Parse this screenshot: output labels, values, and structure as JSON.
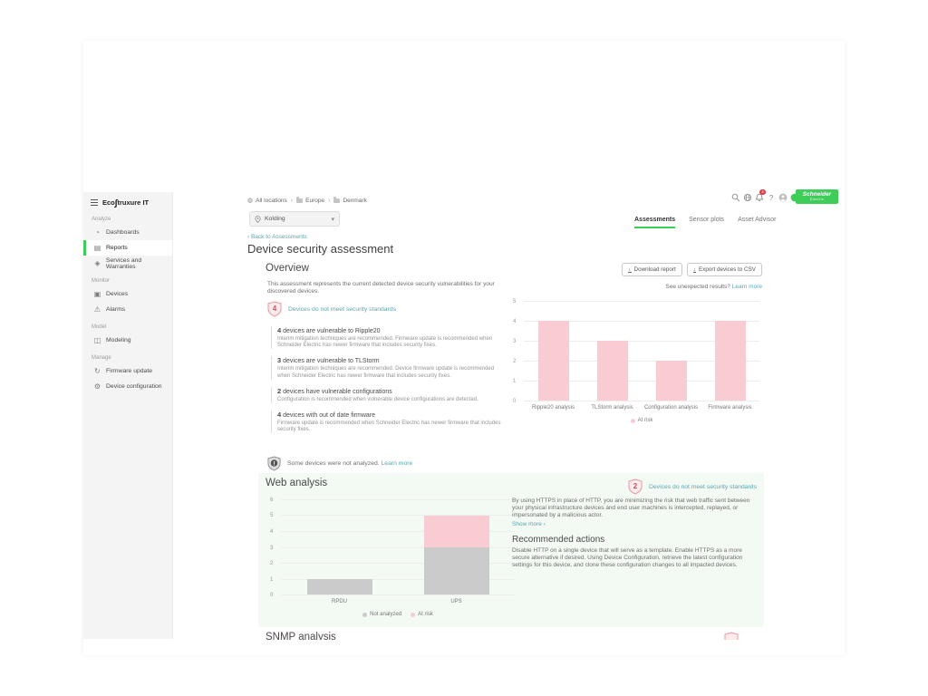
{
  "brand": {
    "logo_eco": "Eco",
    "logo_swirl": "∫",
    "logo_rest": "truxure IT",
    "schneider_line1": "Schneider",
    "schneider_line2": "Electric",
    "accent_green": "#3dcd58",
    "teal_link": "#5aa6b0",
    "risk_pink": "#f8ccd2",
    "neutral_gray": "#cbcbcb"
  },
  "sidebar": {
    "sections": [
      {
        "label": "Analyze",
        "items": [
          {
            "label": "Dashboards",
            "icon": "dashboards-icon",
            "glyph": "◔",
            "active": false
          },
          {
            "label": "Reports",
            "icon": "reports-icon",
            "glyph": "▤",
            "active": true
          },
          {
            "label": "Services and Warranties",
            "icon": "services-warranties-icon",
            "glyph": "◈",
            "active": false
          }
        ]
      },
      {
        "label": "Monitor",
        "items": [
          {
            "label": "Devices",
            "icon": "devices-icon",
            "glyph": "▣",
            "active": false
          },
          {
            "label": "Alarms",
            "icon": "alarms-icon",
            "glyph": "⚠",
            "active": false
          }
        ]
      },
      {
        "label": "Model",
        "items": [
          {
            "label": "Modeling",
            "icon": "modeling-icon",
            "glyph": "◫",
            "active": false
          }
        ]
      },
      {
        "label": "Manage",
        "items": [
          {
            "label": "Firmware update",
            "icon": "firmware-update-icon",
            "glyph": "↻",
            "active": false
          },
          {
            "label": "Device configuration",
            "icon": "device-configuration-icon",
            "glyph": "⚙",
            "active": false
          }
        ]
      }
    ]
  },
  "topbar": {
    "breadcrumb": [
      {
        "label": "All locations"
      },
      {
        "label": "Europe"
      },
      {
        "label": "Denmark"
      }
    ],
    "location_selector": "Kolding",
    "dropdown_chevron": "▾",
    "notification_count": "4",
    "toolbar_icons": [
      "search-icon",
      "globe-icon",
      "notifications-icon",
      "help-icon",
      "user-avatar-icon",
      "org-avatar-icon"
    ],
    "tabs": [
      {
        "label": "Assessments",
        "active": true
      },
      {
        "label": "Sensor plots",
        "active": false
      },
      {
        "label": "Asset Advisor",
        "active": false
      }
    ]
  },
  "page": {
    "back_link": "‹ Back to Assessments",
    "title": "Device security assessment"
  },
  "overview": {
    "heading": "Overview",
    "download_button": "Download report",
    "export_button": "Export devices to CSV",
    "download_icon": "↓",
    "description": "This assessment represents the current detected device security vulnerabilities for your discovered devices.",
    "unexpected_results": "See unexpected results?",
    "unexpected_link": "Learn more",
    "risk_badge": {
      "count": "4",
      "label": "Devices do not meet security standards"
    },
    "findings": [
      {
        "count": "4",
        "title": "devices are vulnerable to Ripple20",
        "description": "Interim mitigation techniques are recommended. Firmware update is recommended when Schneider Electric has newer firmware that includes security fixes."
      },
      {
        "count": "3",
        "title": "devices are vulnerable to TLStorm",
        "description": "Interim mitigation techniques are recommended. Device firmware update is recommended when Schneider Electric has newer firmware that includes security fixes."
      },
      {
        "count": "2",
        "title": "devices have vulnerable configurations",
        "description": "Configuration is recommended when vulnerable device configurations are detected."
      },
      {
        "count": "4",
        "title": "devices with out of date firmware",
        "description": "Firmware update is recommended when Schneider Electric has newer firmware that includes security fixes."
      }
    ],
    "not_analyzed": {
      "badge": "!",
      "text": "Some devices were not analyzed.",
      "link": "Learn more"
    }
  },
  "web_analysis": {
    "heading": "Web analysis",
    "risk_badge": {
      "count": "2",
      "label": "Devices do not meet security standards"
    },
    "description": "By using HTTPS in place of HTTP, you are minimizing the risk that web traffic sent between your physical infrastructure devices and end user machines is intercepted, replayed, or impersonated by a malicious actor.",
    "show_more": "Show more ›",
    "recommended_heading": "Recommended actions",
    "recommended_text": "Disable HTTP on a single device that will serve as a template. Enable HTTPS as a more secure alternative if desired. Using Device Configuration, retrieve the latest configuration settings for this device, and clone these configuration changes to all impacted devices."
  },
  "snmp": {
    "heading": "SNMP analysis"
  },
  "chart_data": [
    {
      "type": "bar",
      "categories": [
        "Ripple20 analysis",
        "TLStorm analysis",
        "Configuration analysis",
        "Firmware analysis"
      ],
      "series": [
        {
          "name": "At risk",
          "color": "#f8ccd2",
          "values": [
            4,
            3,
            2,
            4
          ]
        }
      ],
      "ylim": [
        0,
        5
      ],
      "yticks": [
        0,
        1,
        2,
        3,
        4,
        5
      ],
      "xlabel": "",
      "ylabel": "",
      "grid": true,
      "legend_position": "bottom"
    },
    {
      "type": "bar",
      "stacked": true,
      "categories": [
        "RPDU",
        "UPS"
      ],
      "series": [
        {
          "name": "Not analyzed",
          "color": "#cbcbcb",
          "values": [
            1,
            3
          ]
        },
        {
          "name": "At risk",
          "color": "#f8ccd2",
          "values": [
            0,
            2
          ]
        }
      ],
      "ylim": [
        0,
        6
      ],
      "yticks": [
        0,
        1,
        2,
        3,
        4,
        5,
        6
      ],
      "xlabel": "",
      "ylabel": "",
      "grid": true,
      "legend_position": "bottom"
    }
  ]
}
